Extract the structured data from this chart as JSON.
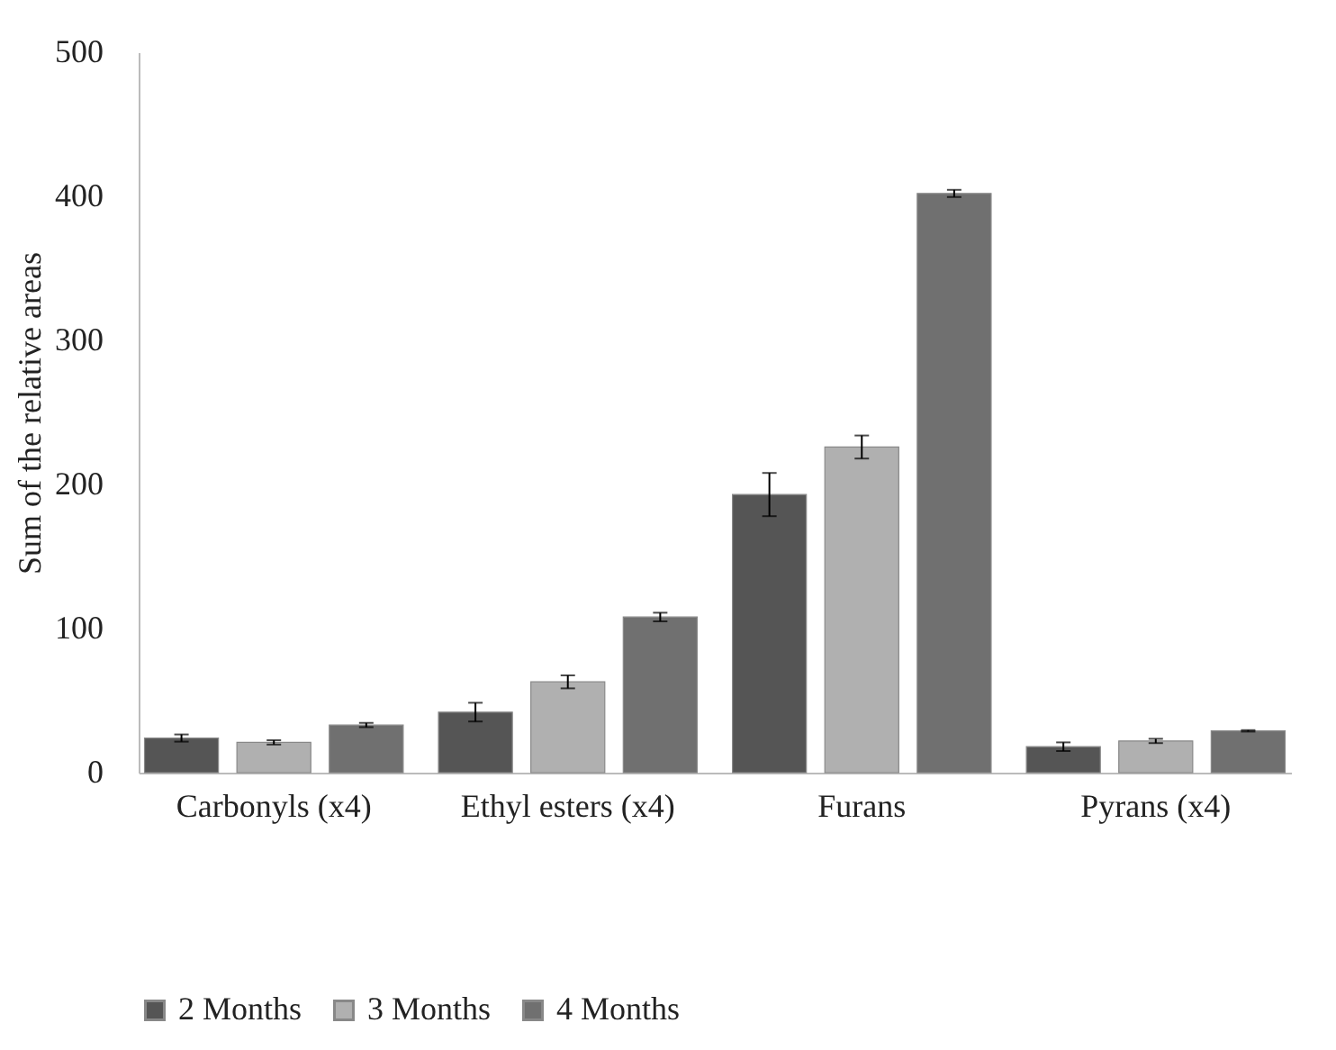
{
  "chart_data": {
    "type": "bar",
    "ylabel": "Sum of the relative areas",
    "categories": [
      "Carbonyls (x4)",
      "Ethyl esters (x4)",
      "Furans",
      "Pyrans (x4)"
    ],
    "series": [
      {
        "name": "2 Months",
        "color": "#555555",
        "values": [
          24,
          42,
          193,
          18
        ],
        "errors": [
          2.5,
          6.5,
          15,
          3
        ]
      },
      {
        "name": "3 Months",
        "color": "#b0b0b0",
        "values": [
          21,
          63,
          226,
          22
        ],
        "errors": [
          1.5,
          4.5,
          8,
          1.5
        ]
      },
      {
        "name": "4 Months",
        "color": "#707070",
        "values": [
          33,
          108,
          402,
          29
        ],
        "errors": [
          1.5,
          3,
          2.5,
          0.5
        ]
      }
    ],
    "ylim": [
      0,
      500
    ],
    "yticks": [
      0,
      100,
      200,
      300,
      400,
      500
    ],
    "grid": false,
    "legend": "bottom"
  }
}
